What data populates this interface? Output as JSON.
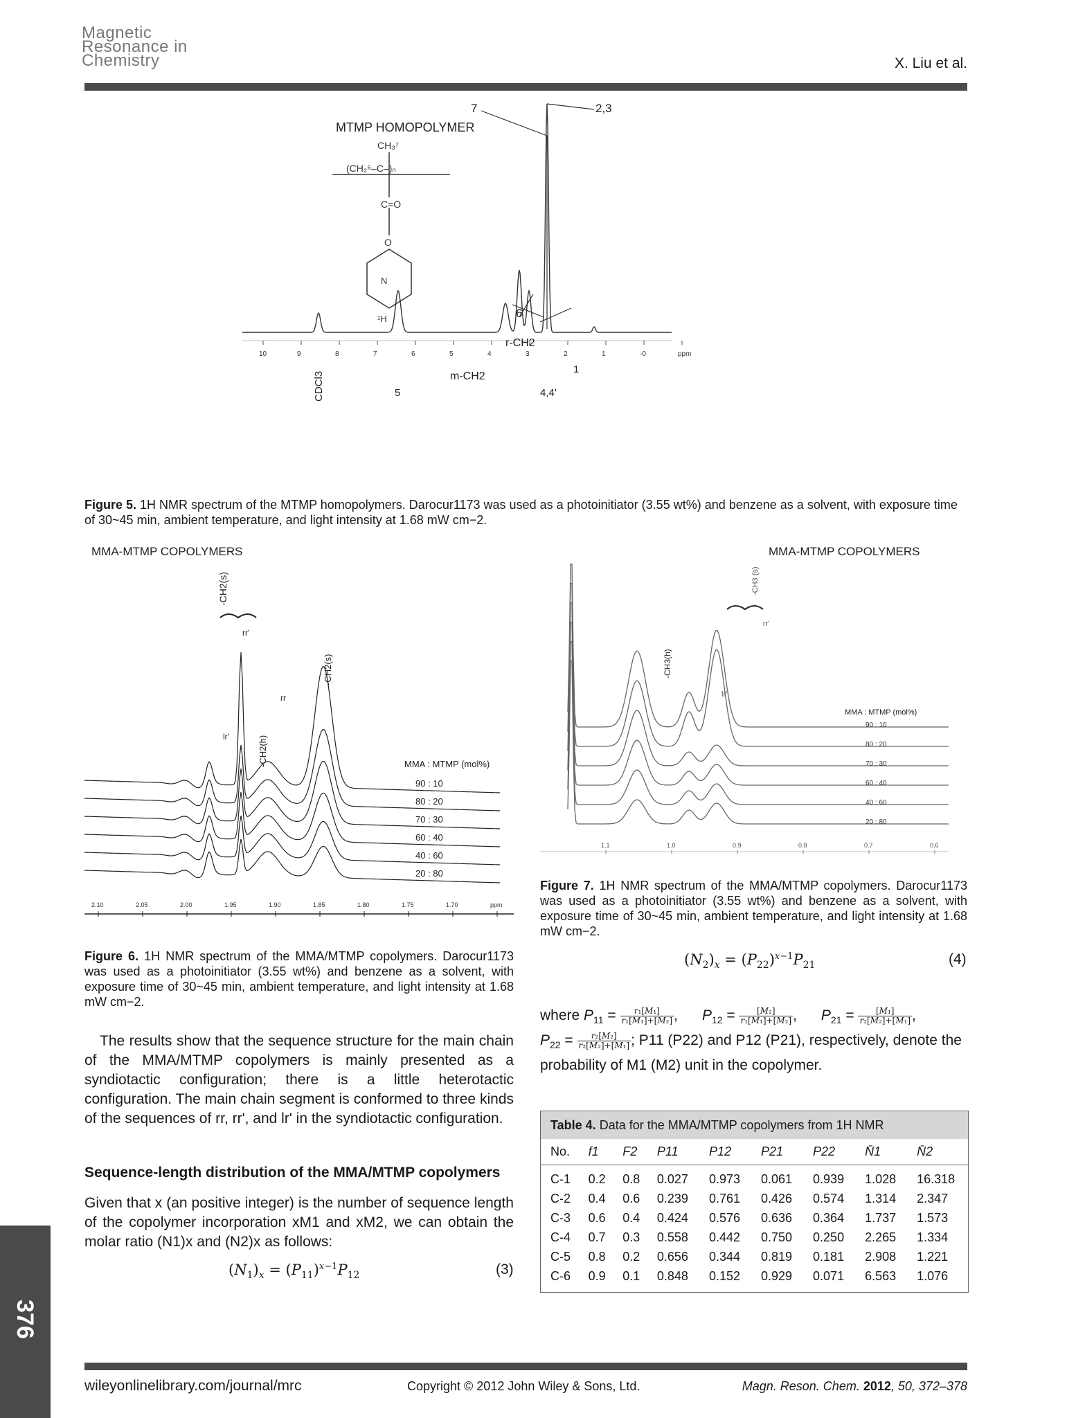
{
  "header": {
    "logo_line1": "Magnetic",
    "logo_line2": "Resonance in",
    "logo_line3": "Chemistry",
    "running_head": "X. Liu et al."
  },
  "figure5": {
    "title": "MTMP HOMOPOLYMER",
    "peak_labels": [
      "7",
      "2,3",
      "6",
      "r-CH2",
      "m-CH2",
      "4,4'",
      "1",
      "5",
      "CDCl3"
    ],
    "axis_ticks": [
      "10",
      "9",
      "8",
      "7",
      "6",
      "5",
      "4",
      "3",
      "2",
      "1",
      "-0",
      "ppm"
    ],
    "caption_label": "Figure 5.",
    "caption_text": "1H NMR spectrum of the MTMP homopolymers. Darocur1173 was used as a photoinitiator (3.55 wt%) and benzene as a solvent, with exposure time of 30~45 min, ambient temperature, and light intensity at 1.68 mW cm−2."
  },
  "figure6": {
    "title": "MMA-MTMP COPOLYMERS",
    "peak_labels": [
      "-CH2(s)",
      "rr'",
      "lr'",
      "-CH2(h)",
      "-CH2(s)",
      "rr"
    ],
    "legend_title": "MMA : MTMP (mol%)",
    "ratios": [
      "90 : 10",
      "80 : 20",
      "70 : 30",
      "60 : 40",
      "40 : 60",
      "20 : 80"
    ],
    "axis_ticks": [
      "2.10",
      "2.05",
      "2.00",
      "1.95",
      "1.90",
      "1.85",
      "1.80",
      "1.75",
      "1.70",
      "ppm"
    ],
    "caption_label": "Figure 6.",
    "caption_text": "1H NMR spectrum of the MMA/MTMP copolymers. Darocur1173 was used as a photoinitiator (3.55 wt%) and benzene as a solvent, with exposure time of 30~45 min, ambient temperature, and light intensity at 1.68 mW cm−2."
  },
  "figure7": {
    "title": "MMA-MTMP COPOLYMERS",
    "peak_labels": [
      "-CH3 (s)",
      "rr'",
      "-CH3(h)",
      "lr'"
    ],
    "legend_title": "MMA : MTMP (mol%)",
    "ratios": [
      "90 : 10",
      "80 : 20",
      "70 : 30",
      "60 : 40",
      "40 : 60",
      "20 : 80"
    ],
    "axis_ticks": [
      "1.1",
      "1.0",
      "0.9",
      "0.8",
      "0.7",
      "0.6"
    ],
    "caption_label": "Figure 7.",
    "caption_text": "1H NMR spectrum of the MMA/MTMP copolymers. Darocur1173 was used as a photoinitiator (3.55 wt%) and benzene as a solvent, with exposure time of 30~45 min, ambient temperature, and light intensity at 1.68 mW cm−2."
  },
  "body": {
    "para1": "The results show that the sequence structure for the main chain of the MMA/MTMP copolymers is mainly presented as a syndiotactic configuration; there is a little heterotactic configuration. The main chain segment is conformed to three kinds of the sequences of rr, rr', and lr' in the syndiotactic configuration.",
    "section_heading": "Sequence-length distribution of the MMA/MTMP copolymers",
    "para2": "Given that x (an positive integer) is the number of sequence length of the copolymer incorporation xM1 and xM2, we can obtain the molar ratio (N1)x and (N2)x as follows:",
    "eq3_number": "(3)",
    "eq4_number": "(4)",
    "where_text": "P11 (P22) and P12 (P21), respectively, denote the probability of M1 (M2) unit in the copolymer."
  },
  "table4": {
    "caption_label": "Table 4.",
    "caption_text": "Data for the MMA/MTMP copolymers from 1H NMR",
    "columns": [
      "No.",
      "f1",
      "F2",
      "P11",
      "P12",
      "P21",
      "P22",
      "N̄1",
      "N̄2"
    ],
    "rows": [
      [
        "C-1",
        "0.2",
        "0.8",
        "0.027",
        "0.973",
        "0.061",
        "0.939",
        "1.028",
        "16.318"
      ],
      [
        "C-2",
        "0.4",
        "0.6",
        "0.239",
        "0.761",
        "0.426",
        "0.574",
        "1.314",
        "2.347"
      ],
      [
        "C-3",
        "0.6",
        "0.4",
        "0.424",
        "0.576",
        "0.636",
        "0.364",
        "1.737",
        "1.573"
      ],
      [
        "C-4",
        "0.7",
        "0.3",
        "0.558",
        "0.442",
        "0.750",
        "0.250",
        "2.265",
        "1.334"
      ],
      [
        "C-5",
        "0.8",
        "0.2",
        "0.656",
        "0.344",
        "0.819",
        "0.181",
        "2.908",
        "1.221"
      ],
      [
        "C-6",
        "0.9",
        "0.1",
        "0.848",
        "0.152",
        "0.929",
        "0.071",
        "6.563",
        "1.076"
      ]
    ]
  },
  "footer": {
    "url": "wileyonlinelibrary.com/journal/mrc",
    "copyright": "Copyright © 2012 John Wiley & Sons, Ltd.",
    "citation_journal": "Magn. Reson. Chem.",
    "citation_year": "2012",
    "citation_rest": ", 50, 372–378",
    "page_number": "376"
  }
}
